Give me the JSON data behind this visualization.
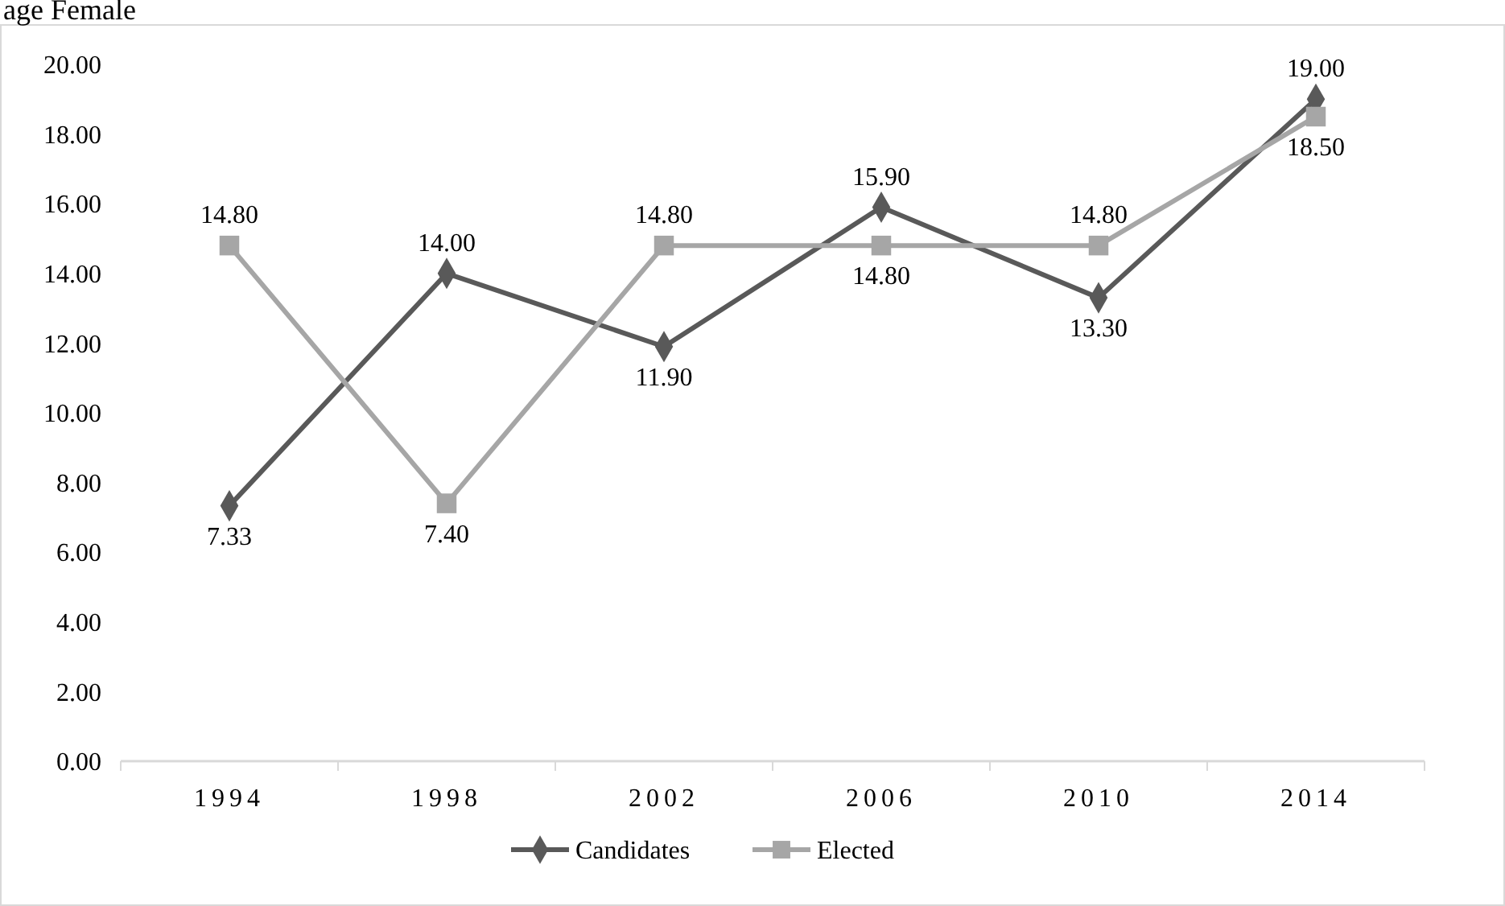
{
  "chart_data": {
    "type": "line",
    "title": "age Female",
    "categories": [
      "1994",
      "1998",
      "2002",
      "2006",
      "2010",
      "2014"
    ],
    "series": [
      {
        "name": "Candidates",
        "color": "#595959",
        "marker": "diamond",
        "values": [
          7.33,
          14.0,
          11.9,
          15.9,
          13.3,
          19.0
        ],
        "value_labels": [
          "7.33",
          "14.00",
          "11.90",
          "15.90",
          "13.30",
          "19.00"
        ]
      },
      {
        "name": "Elected",
        "color": "#a6a6a6",
        "marker": "square",
        "values": [
          14.8,
          7.4,
          14.8,
          14.8,
          14.8,
          18.5
        ],
        "value_labels": [
          "14.80",
          "7.40",
          "14.80",
          "14.80",
          "14.80",
          "18.50"
        ]
      }
    ],
    "ylim": [
      0,
      20
    ],
    "yticks": [
      {
        "value": 0,
        "label": "0.00"
      },
      {
        "value": 2,
        "label": "2.00"
      },
      {
        "value": 4,
        "label": "4.00"
      },
      {
        "value": 6,
        "label": "6.00"
      },
      {
        "value": 8,
        "label": "8.00"
      },
      {
        "value": 10,
        "label": "10.00"
      },
      {
        "value": 12,
        "label": "12.00"
      },
      {
        "value": 14,
        "label": "14.00"
      },
      {
        "value": 16,
        "label": "16.00"
      },
      {
        "value": 18,
        "label": "18.00"
      },
      {
        "value": 20,
        "label": "20.00"
      }
    ],
    "grid": false,
    "legend": "bottom",
    "line_style": "solid"
  }
}
